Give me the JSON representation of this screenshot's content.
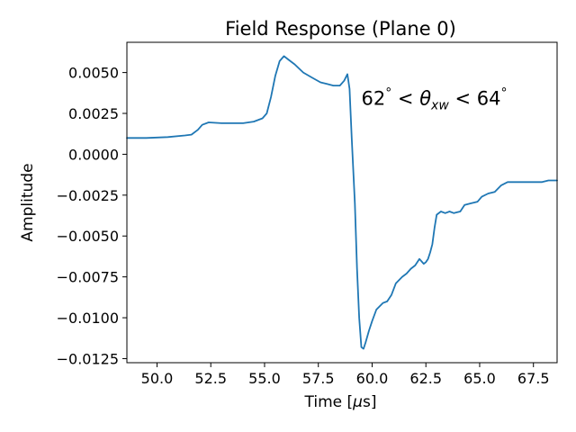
{
  "chart_data": {
    "type": "line",
    "title": "Field Response (Plane 0)",
    "xlabel": "Time [μs]",
    "ylabel": "Amplitude",
    "xlim": [
      48.6,
      68.6
    ],
    "ylim": [
      -0.01275,
      0.00685
    ],
    "grid": false,
    "x_ticks": [
      {
        "value": 50.0,
        "label": "50.0"
      },
      {
        "value": 52.5,
        "label": "52.5"
      },
      {
        "value": 55.0,
        "label": "55.0"
      },
      {
        "value": 57.5,
        "label": "57.5"
      },
      {
        "value": 60.0,
        "label": "60.0"
      },
      {
        "value": 62.5,
        "label": "62.5"
      },
      {
        "value": 65.0,
        "label": "65.0"
      },
      {
        "value": 67.5,
        "label": "67.5"
      }
    ],
    "y_ticks": [
      {
        "value": 0.005,
        "label": "0.0050"
      },
      {
        "value": 0.0025,
        "label": "0.0025"
      },
      {
        "value": 0.0,
        "label": "0.0000"
      },
      {
        "value": -0.0025,
        "label": "−0.0025"
      },
      {
        "value": -0.005,
        "label": "−0.0050"
      },
      {
        "value": -0.0075,
        "label": "−0.0075"
      },
      {
        "value": -0.01,
        "label": "−0.0100"
      },
      {
        "value": -0.0125,
        "label": "−0.0125"
      }
    ],
    "annotation": {
      "text": "62° < θxw < 64°",
      "x": 59.5,
      "y": 0.0034
    },
    "series": [
      {
        "color": "#1f77b4",
        "x": [
          48.6,
          49.5,
          50.5,
          51.3,
          51.6,
          51.9,
          52.1,
          52.4,
          53.0,
          53.5,
          54.0,
          54.5,
          54.9,
          55.1,
          55.3,
          55.5,
          55.7,
          55.9,
          56.1,
          56.4,
          56.8,
          57.2,
          57.6,
          57.9,
          58.2,
          58.5,
          58.7,
          58.85,
          58.95,
          59.05,
          59.2,
          59.3,
          59.4,
          59.5,
          59.6,
          59.7,
          59.85,
          60.0,
          60.2,
          60.5,
          60.7,
          60.9,
          61.1,
          61.4,
          61.6,
          61.8,
          62.0,
          62.2,
          62.4,
          62.5,
          62.6,
          62.7,
          62.8,
          62.9,
          63.0,
          63.2,
          63.4,
          63.6,
          63.8,
          64.1,
          64.3,
          64.6,
          64.9,
          65.1,
          65.4,
          65.7,
          66.0,
          66.3,
          66.6,
          66.8,
          67.1,
          67.3,
          67.6,
          67.9,
          68.2,
          68.6
        ],
        "y": [
          0.001,
          0.001,
          0.00105,
          0.00115,
          0.0012,
          0.0015,
          0.0018,
          0.00195,
          0.0019,
          0.0019,
          0.0019,
          0.002,
          0.0022,
          0.0025,
          0.0035,
          0.0048,
          0.0057,
          0.006,
          0.0058,
          0.0055,
          0.005,
          0.0047,
          0.0044,
          0.0043,
          0.0042,
          0.0042,
          0.0045,
          0.0049,
          0.004,
          0.001,
          -0.003,
          -0.007,
          -0.01,
          -0.0118,
          -0.0119,
          -0.0115,
          -0.0108,
          -0.0102,
          -0.0095,
          -0.0091,
          -0.009,
          -0.0086,
          -0.0079,
          -0.0075,
          -0.0073,
          -0.007,
          -0.0068,
          -0.0064,
          -0.0067,
          -0.0066,
          -0.0064,
          -0.006,
          -0.0055,
          -0.0045,
          -0.0037,
          -0.0035,
          -0.0036,
          -0.0035,
          -0.0036,
          -0.0035,
          -0.0031,
          -0.003,
          -0.0029,
          -0.0026,
          -0.0024,
          -0.0023,
          -0.0019,
          -0.0017,
          -0.0017,
          -0.0017,
          -0.0017,
          -0.0017,
          -0.0017,
          -0.0017,
          -0.0016,
          -0.0016
        ]
      }
    ]
  }
}
